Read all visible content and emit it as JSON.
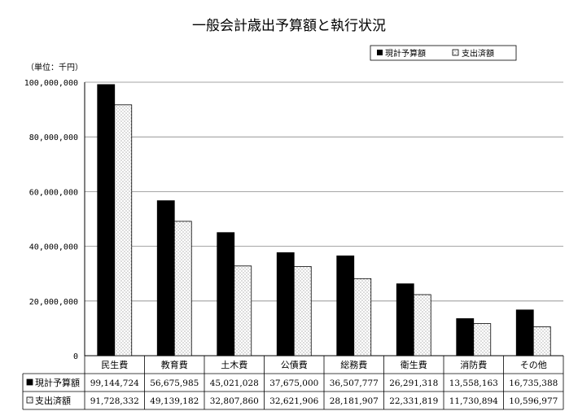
{
  "chart_data": {
    "type": "bar",
    "title": "一般会計歳出予算額と執行状況",
    "unit_label": "（単位：千円）",
    "categories": [
      "民生費",
      "教育費",
      "土木費",
      "公債費",
      "総務費",
      "衛生費",
      "消防費",
      "その他"
    ],
    "series": [
      {
        "name": "現計予算額",
        "color": "#000000",
        "values": [
          99144724,
          56675985,
          45021028,
          37675000,
          36507777,
          26291318,
          13558163,
          16735388
        ],
        "labels": [
          "99,144,724",
          "56,675,985",
          "45,021,028",
          "37,675,000",
          "36,507,777",
          "26,291,318",
          "13,558,163",
          "16,735,388"
        ]
      },
      {
        "name": "支出済額",
        "color": "#ffffff",
        "pattern": "dotted",
        "values": [
          91728332,
          49139182,
          32807860,
          32621906,
          28181907,
          22331819,
          11730894,
          10596977
        ],
        "labels": [
          "91,728,332",
          "49,139,182",
          "32,807,860",
          "32,621,906",
          "28,181,907",
          "22,331,819",
          "11,730,894",
          "10,596,977"
        ]
      }
    ],
    "yticks": [
      0,
      20000000,
      40000000,
      60000000,
      80000000,
      100000000
    ],
    "ytick_labels": [
      "0",
      "20,000,000",
      "40,000,000",
      "60,000,000",
      "80,000,000",
      "100,000,000"
    ],
    "ylim": [
      0,
      100000000
    ],
    "grid": "horizontal",
    "legend_position": "top-right",
    "data_table": true
  }
}
